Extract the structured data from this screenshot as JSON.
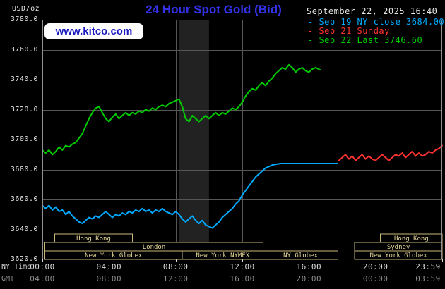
{
  "header": {
    "unit_label": "USD/oz",
    "title": "24 Hour Spot Gold (Bid)",
    "datetime": "September 22, 2025 16:40",
    "watermark": "www.kitco.com"
  },
  "legend": {
    "items": [
      {
        "label": "Sep 19 NY close 3684.00",
        "color": "#00aaff"
      },
      {
        "label": "Sep 21 Sunday",
        "color": "#ff3232"
      },
      {
        "label": "Sep 22 Last 3746.60",
        "color": "#00cc00"
      }
    ]
  },
  "axis": {
    "ny_label": "NY Time",
    "gmt_label": "GMT"
  },
  "colors": {
    "background": "#000000",
    "title": "#3333ee",
    "watermark_text": "#1a1abf",
    "watermark_bg": "#ffffff",
    "grid": "#565656",
    "plot_border": "#909090",
    "band": "#222222",
    "session": "#c8b878",
    "session_text": "#e6d89a",
    "axis_text": "#dcdcdc",
    "gmt_text": "#8c8c8c",
    "series_cyan": "#00aaff",
    "series_red": "#ff3232",
    "series_green": "#00cc00"
  },
  "chart_data": {
    "type": "line",
    "title": "24 Hour Spot Gold (Bid)",
    "ylabel": "USD/oz",
    "xlabel": "NY Time / GMT",
    "ylim": [
      3620,
      3780
    ],
    "y_tick_step": 20,
    "x_hours_range": [
      0,
      24
    ],
    "prev_ny_close": 3684.0,
    "last": 3746.6,
    "x_ticks": [
      {
        "hour": 0,
        "ny": "00:00",
        "gmt": "04:00"
      },
      {
        "hour": 4,
        "ny": "04:00",
        "gmt": "08:00"
      },
      {
        "hour": 8,
        "ny": "08:00",
        "gmt": "12:00"
      },
      {
        "hour": 12,
        "ny": "12:00",
        "gmt": "16:00"
      },
      {
        "hour": 16,
        "ny": "16:00",
        "gmt": "20:00"
      },
      {
        "hour": 20,
        "ny": "20:00",
        "gmt": "00:00"
      },
      {
        "hour": 23.983,
        "ny": "23:59",
        "gmt": "03:59"
      }
    ],
    "highlight_band_hours": [
      8.2,
      10.0
    ],
    "series": [
      {
        "name": "Sep 19 NY close",
        "color": "#00aaff",
        "points": [
          [
            0,
            3656
          ],
          [
            0.2,
            3654
          ],
          [
            0.4,
            3656
          ],
          [
            0.6,
            3653
          ],
          [
            0.8,
            3655
          ],
          [
            1.0,
            3652
          ],
          [
            1.2,
            3653
          ],
          [
            1.4,
            3650
          ],
          [
            1.6,
            3652
          ],
          [
            1.8,
            3649
          ],
          [
            2.0,
            3647
          ],
          [
            2.2,
            3645
          ],
          [
            2.4,
            3644
          ],
          [
            2.6,
            3646
          ],
          [
            2.8,
            3648
          ],
          [
            3.0,
            3647
          ],
          [
            3.2,
            3649
          ],
          [
            3.4,
            3648
          ],
          [
            3.6,
            3650
          ],
          [
            3.8,
            3652
          ],
          [
            4.0,
            3650
          ],
          [
            4.2,
            3648
          ],
          [
            4.4,
            3650
          ],
          [
            4.6,
            3649
          ],
          [
            4.8,
            3651
          ],
          [
            5.0,
            3650
          ],
          [
            5.2,
            3652
          ],
          [
            5.4,
            3651
          ],
          [
            5.6,
            3653
          ],
          [
            5.8,
            3652
          ],
          [
            6.0,
            3654
          ],
          [
            6.2,
            3652
          ],
          [
            6.4,
            3653
          ],
          [
            6.6,
            3651
          ],
          [
            6.8,
            3653
          ],
          [
            7.0,
            3652
          ],
          [
            7.2,
            3654
          ],
          [
            7.4,
            3652
          ],
          [
            7.6,
            3651
          ],
          [
            7.8,
            3650
          ],
          [
            8.0,
            3652
          ],
          [
            8.2,
            3650
          ],
          [
            8.4,
            3647
          ],
          [
            8.6,
            3645
          ],
          [
            8.8,
            3647
          ],
          [
            9.0,
            3649
          ],
          [
            9.2,
            3646
          ],
          [
            9.4,
            3644
          ],
          [
            9.6,
            3646
          ],
          [
            9.8,
            3643
          ],
          [
            10.0,
            3642
          ],
          [
            10.2,
            3641
          ],
          [
            10.4,
            3643
          ],
          [
            10.6,
            3645
          ],
          [
            10.8,
            3648
          ],
          [
            11.0,
            3650
          ],
          [
            11.2,
            3652
          ],
          [
            11.4,
            3654
          ],
          [
            11.6,
            3657
          ],
          [
            11.8,
            3659
          ],
          [
            12.0,
            3663
          ],
          [
            12.2,
            3666
          ],
          [
            12.4,
            3669
          ],
          [
            12.6,
            3672
          ],
          [
            12.8,
            3675
          ],
          [
            13.0,
            3677
          ],
          [
            13.2,
            3679
          ],
          [
            13.4,
            3681
          ],
          [
            13.6,
            3682
          ],
          [
            13.8,
            3683
          ],
          [
            14.0,
            3683.5
          ],
          [
            14.3,
            3684
          ],
          [
            15.0,
            3684
          ],
          [
            16.0,
            3684
          ],
          [
            17.0,
            3684
          ],
          [
            17.7,
            3684
          ]
        ]
      },
      {
        "name": "Sep 21 Sunday",
        "color": "#ff3232",
        "points": [
          [
            17.8,
            3686
          ],
          [
            18.0,
            3688
          ],
          [
            18.2,
            3690
          ],
          [
            18.4,
            3687
          ],
          [
            18.6,
            3689
          ],
          [
            18.8,
            3686
          ],
          [
            19.0,
            3688
          ],
          [
            19.2,
            3690
          ],
          [
            19.4,
            3687
          ],
          [
            19.6,
            3689
          ],
          [
            19.8,
            3687
          ],
          [
            20.0,
            3686
          ],
          [
            20.2,
            3688
          ],
          [
            20.4,
            3690
          ],
          [
            20.6,
            3688
          ],
          [
            20.8,
            3686
          ],
          [
            21.0,
            3688
          ],
          [
            21.2,
            3690
          ],
          [
            21.4,
            3689
          ],
          [
            21.6,
            3691
          ],
          [
            21.8,
            3688
          ],
          [
            22.0,
            3690
          ],
          [
            22.2,
            3692
          ],
          [
            22.4,
            3689
          ],
          [
            22.6,
            3691
          ],
          [
            22.8,
            3689
          ],
          [
            23.0,
            3690
          ],
          [
            23.2,
            3692
          ],
          [
            23.4,
            3691
          ],
          [
            23.6,
            3693
          ],
          [
            23.8,
            3694
          ],
          [
            24.0,
            3696
          ]
        ]
      },
      {
        "name": "Sep 22 Last",
        "color": "#00cc00",
        "points": [
          [
            0,
            3693
          ],
          [
            0.2,
            3691
          ],
          [
            0.4,
            3693
          ],
          [
            0.6,
            3690
          ],
          [
            0.8,
            3692
          ],
          [
            1.0,
            3695
          ],
          [
            1.2,
            3693
          ],
          [
            1.4,
            3696
          ],
          [
            1.6,
            3695
          ],
          [
            1.8,
            3697
          ],
          [
            2.0,
            3698
          ],
          [
            2.2,
            3701
          ],
          [
            2.4,
            3704
          ],
          [
            2.6,
            3709
          ],
          [
            2.8,
            3714
          ],
          [
            3.0,
            3718
          ],
          [
            3.2,
            3721
          ],
          [
            3.4,
            3722
          ],
          [
            3.6,
            3718
          ],
          [
            3.8,
            3714
          ],
          [
            4.0,
            3712
          ],
          [
            4.2,
            3715
          ],
          [
            4.4,
            3717
          ],
          [
            4.6,
            3714
          ],
          [
            4.8,
            3716
          ],
          [
            5.0,
            3718
          ],
          [
            5.2,
            3716
          ],
          [
            5.4,
            3718
          ],
          [
            5.6,
            3717
          ],
          [
            5.8,
            3719
          ],
          [
            6.0,
            3718
          ],
          [
            6.2,
            3720
          ],
          [
            6.4,
            3719
          ],
          [
            6.6,
            3721
          ],
          [
            6.8,
            3720
          ],
          [
            7.0,
            3722
          ],
          [
            7.2,
            3723
          ],
          [
            7.4,
            3722
          ],
          [
            7.6,
            3724
          ],
          [
            7.8,
            3725
          ],
          [
            8.0,
            3726
          ],
          [
            8.2,
            3727
          ],
          [
            8.4,
            3722
          ],
          [
            8.6,
            3714
          ],
          [
            8.8,
            3712
          ],
          [
            9.0,
            3716
          ],
          [
            9.2,
            3714
          ],
          [
            9.4,
            3712
          ],
          [
            9.6,
            3714
          ],
          [
            9.8,
            3716
          ],
          [
            10.0,
            3714
          ],
          [
            10.2,
            3716
          ],
          [
            10.4,
            3718
          ],
          [
            10.6,
            3716
          ],
          [
            10.8,
            3718
          ],
          [
            11.0,
            3717
          ],
          [
            11.2,
            3719
          ],
          [
            11.4,
            3721
          ],
          [
            11.6,
            3720
          ],
          [
            11.8,
            3722
          ],
          [
            12.0,
            3725
          ],
          [
            12.2,
            3729
          ],
          [
            12.4,
            3732
          ],
          [
            12.6,
            3734
          ],
          [
            12.8,
            3733
          ],
          [
            13.0,
            3736
          ],
          [
            13.2,
            3738
          ],
          [
            13.4,
            3736
          ],
          [
            13.6,
            3739
          ],
          [
            13.8,
            3741
          ],
          [
            14.0,
            3744
          ],
          [
            14.2,
            3746
          ],
          [
            14.4,
            3748
          ],
          [
            14.6,
            3747
          ],
          [
            14.8,
            3750
          ],
          [
            15.0,
            3748
          ],
          [
            15.2,
            3745
          ],
          [
            15.4,
            3747
          ],
          [
            15.6,
            3748
          ],
          [
            15.8,
            3746
          ],
          [
            16.0,
            3745
          ],
          [
            16.2,
            3747
          ],
          [
            16.4,
            3748
          ],
          [
            16.67,
            3746.6
          ]
        ]
      }
    ],
    "sessions": [
      {
        "row": 0,
        "label": "Hong Kong",
        "start": 0.75,
        "end": 5.4
      },
      {
        "row": 0,
        "label": "Hong Kong",
        "start": 20.3,
        "end": 24
      },
      {
        "row": 1,
        "label": "London",
        "start": 0.15,
        "end": 13.25
      },
      {
        "row": 1,
        "label": "Sydney",
        "start": 18.75,
        "end": 24
      },
      {
        "row": 2,
        "label": "New York Globex",
        "start": 0.15,
        "end": 8.4
      },
      {
        "row": 2,
        "label": "New York NYMEX",
        "start": 8.4,
        "end": 13.25
      },
      {
        "row": 2,
        "label": "NY Globex",
        "start": 13.25,
        "end": 17.75
      },
      {
        "row": 2,
        "label": "New York Globex",
        "start": 18.75,
        "end": 24
      }
    ]
  }
}
